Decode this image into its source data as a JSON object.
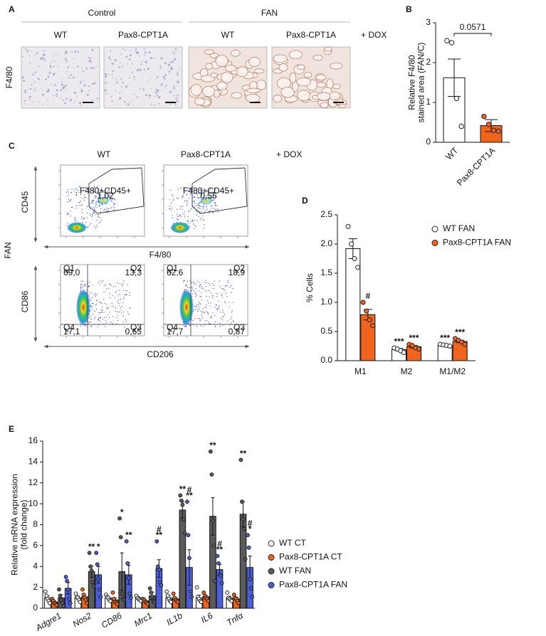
{
  "panel_a": {
    "label": "A",
    "groups": [
      "Control",
      "FAN"
    ],
    "columns": [
      "WT",
      "Pax8-CPT1A",
      "WT",
      "Pax8-CPT1A"
    ],
    "row_label": "F4/80",
    "treatment": "+ DOX"
  },
  "panel_c": {
    "label": "C",
    "columns": [
      "WT",
      "Pax8-CPT1A"
    ],
    "treatment": "+ DOX",
    "row_label": "FAN",
    "top": {
      "y_label": "CD45",
      "x_label": "F4/80",
      "gates": [
        {
          "name": "F480+CD45+",
          "value": "1,02"
        },
        {
          "name": "F480+CD45+",
          "value": "0,55"
        }
      ]
    },
    "bottom": {
      "y_label": "CD86",
      "x_label": "CD206",
      "quadrant_names": [
        "Q1",
        "Q2",
        "Q4",
        "Q3"
      ],
      "quadrant_values": [
        [
          "69,0",
          "13,3",
          "17,1",
          "0,65"
        ],
        [
          "62,6",
          "18,9",
          "17,7",
          "0,87"
        ]
      ]
    }
  },
  "chart_data": [
    {
      "panel": "B",
      "type": "bar",
      "ylabel": [
        "Relative F4/80",
        "stained area (FAN/C)"
      ],
      "categories": [
        "WT",
        "Pax8-CPT1A"
      ],
      "values": [
        1.62,
        0.42
      ],
      "errors": [
        0.47,
        0.15
      ],
      "points": [
        [
          2.55,
          2.5,
          1.1,
          0.4
        ],
        [
          0.65,
          0.45,
          0.3,
          0.28
        ]
      ],
      "colors": [
        "#ffffff",
        "#f0641e"
      ],
      "ylim": [
        0,
        3
      ],
      "yticks": [
        0,
        1,
        2,
        3
      ],
      "pvalue_label": "0.0571",
      "xtick_rotation": 45
    },
    {
      "panel": "D",
      "type": "bar",
      "ylabel": [
        "% Cells"
      ],
      "categories": [
        "M1",
        "M2",
        "M1/M2"
      ],
      "series": [
        {
          "name": "WT FAN",
          "color": "#ffffff",
          "values": [
            1.92,
            0.19,
            0.26
          ],
          "errors": [
            0.17,
            0.02,
            0.01
          ],
          "points": [
            [
              2.3,
              2.0,
              1.75,
              1.6
            ],
            [
              0.22,
              0.2,
              0.17,
              0.14
            ],
            [
              0.28,
              0.27,
              0.26,
              0.25
            ]
          ],
          "annotations": [
            null,
            "***",
            "***"
          ]
        },
        {
          "name": "Pax8-CPT1A FAN",
          "color": "#f0641e",
          "values": [
            0.79,
            0.24,
            0.33
          ],
          "errors": [
            0.09,
            0.02,
            0.02
          ],
          "points": [
            [
              1.0,
              0.85,
              0.7,
              0.6
            ],
            [
              0.28,
              0.26,
              0.22,
              0.2
            ],
            [
              0.38,
              0.35,
              0.32,
              0.28
            ]
          ],
          "annotations": [
            "#",
            "***",
            "***"
          ]
        }
      ],
      "ylim": [
        0,
        2.5
      ],
      "yticks": [
        {
          "value": 0,
          "label": "0.0"
        },
        0.5,
        {
          "value": 1,
          "label": "1.0"
        },
        1.5,
        {
          "value": 2,
          "label": "2.0"
        },
        2.5
      ],
      "legend": "upper right",
      "xtick_rotation": 0
    },
    {
      "panel": "E",
      "type": "bar",
      "ylabel": [
        "Relative mRNA expression",
        "(fold change)"
      ],
      "categories": [
        "Adgre1",
        "Nos2",
        "CD86",
        "Mrc1",
        "IL1b",
        "IL6",
        "Tnfα"
      ],
      "series": [
        {
          "name": "WT CT",
          "color": "#ffffff",
          "values": [
            1.0,
            1.0,
            1.0,
            1.0,
            1.0,
            1.0,
            1.0
          ],
          "errors": [
            0.2,
            0.15,
            0.1,
            0.1,
            0.2,
            0.25,
            0.15
          ],
          "points": [
            [
              1.6,
              1.2,
              0.9,
              0.7,
              0.5
            ],
            [
              1.4,
              1.1,
              1.0,
              0.8,
              0.6
            ],
            [
              1.3,
              1.1,
              1.0,
              0.8,
              0.7
            ],
            [
              1.2,
              1.0,
              0.9,
              0.8,
              0.7
            ],
            [
              1.6,
              1.2,
              0.9,
              0.7,
              0.6
            ],
            [
              2.0,
              1.1,
              0.9,
              0.7,
              0.6
            ],
            [
              1.5,
              1.0,
              0.9,
              0.8,
              0.7
            ]
          ]
        },
        {
          "name": "Pax8-CPT1A CT",
          "color": "#f0641e",
          "values": [
            0.6,
            1.1,
            0.8,
            0.7,
            0.9,
            1.1,
            0.9
          ],
          "errors": [
            0.1,
            0.2,
            0.2,
            0.1,
            0.15,
            0.15,
            0.15
          ],
          "points": [
            [
              0.9,
              0.7,
              0.5,
              0.4,
              0.3
            ],
            [
              1.8,
              1.3,
              1.0,
              0.8,
              0.5
            ],
            [
              1.5,
              0.9,
              0.6,
              0.5,
              0.4
            ],
            [
              0.9,
              0.8,
              0.6,
              0.5,
              0.4
            ],
            [
              1.4,
              1.0,
              0.8,
              0.7,
              0.6
            ],
            [
              1.5,
              1.2,
              1.0,
              0.9,
              0.7
            ],
            [
              1.3,
              1.0,
              0.9,
              0.7,
              0.5
            ]
          ]
        },
        {
          "name": "WT FAN",
          "color": "#5b5b5b",
          "values": [
            1.0,
            3.5,
            3.5,
            1.2,
            9.4,
            8.8,
            9.0
          ],
          "errors": [
            0.3,
            0.55,
            1.8,
            0.35,
            0.8,
            1.8,
            1.2
          ],
          "points": [
            [
              1.8,
              1.2,
              0.8,
              0.5,
              0.2
            ],
            [
              5.3,
              4.0,
              3.6,
              2.5,
              2.1
            ],
            [
              8.6,
              6.8,
              1.4,
              0.9,
              0.8
            ],
            [
              1.9,
              1.5,
              1.1,
              0.7,
              0.6
            ],
            [
              10.8,
              10.3,
              9.9,
              8.5,
              7.2
            ],
            [
              15.0,
              12.8,
              8.4,
              6.0,
              2.6
            ],
            [
              14.2,
              10.2,
              8.5,
              7.6,
              4.7
            ]
          ],
          "annotations": [
            null,
            "**",
            "*",
            null,
            "**",
            "**",
            "**"
          ]
        },
        {
          "name": "Pax8-CPT1A FAN",
          "color": "#4d5fd8",
          "values": [
            1.9,
            3.2,
            3.2,
            3.8,
            3.9,
            3.7,
            3.9
          ],
          "errors": [
            0.55,
            0.8,
            0.9,
            0.85,
            1.7,
            0.5,
            1.1
          ],
          "points": [
            [
              3.0,
              2.6,
              1.8,
              0.9,
              0.5
            ],
            [
              5.3,
              4.2,
              2.8,
              1.8,
              1.1
            ],
            [
              6.4,
              4.3,
              2.9,
              1.4,
              1.0
            ],
            [
              6.4,
              4.0,
              3.7,
              2.5,
              2.2
            ],
            [
              10.2,
              7.0,
              4.8,
              1.6,
              1.1
            ],
            [
              5.0,
              4.3,
              3.2,
              3.1,
              2.4
            ],
            [
              7.0,
              5.8,
              2.8,
              1.9,
              1.1
            ]
          ],
          "annotations": [
            null,
            "*",
            "**",
            [
              "#",
              "**"
            ],
            [
              "#",
              "**"
            ],
            [
              "#",
              "**"
            ],
            [
              "#",
              "*"
            ]
          ]
        }
      ],
      "ylim": [
        0,
        16
      ],
      "yticks": [
        0,
        2,
        4,
        6,
        8,
        10,
        12,
        14,
        16
      ],
      "legend": "right",
      "xtick_rotation": 30,
      "xtick_style": "italic"
    }
  ]
}
